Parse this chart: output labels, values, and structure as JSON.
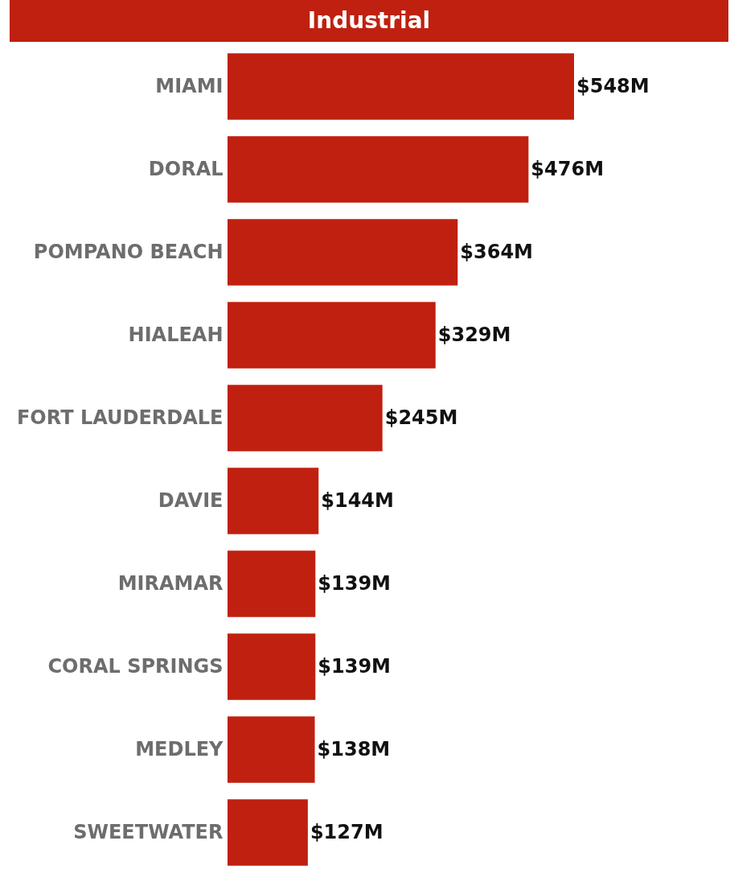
{
  "chart_data": {
    "type": "bar",
    "orientation": "horizontal",
    "title": "Industrial",
    "categories": [
      "MIAMI",
      "DORAL",
      "POMPANO BEACH",
      "HIALEAH",
      "FORT LAUDERDALE",
      "DAVIE",
      "MIRAMAR",
      "CORAL SPRINGS",
      "MEDLEY",
      "SWEETWATER"
    ],
    "values": [
      548,
      476,
      364,
      329,
      245,
      144,
      139,
      139,
      138,
      127
    ],
    "value_labels": [
      "$548M",
      "$476M",
      "$364M",
      "$329M",
      "$245M",
      "$144M",
      "$139M",
      "$139M",
      "$138M",
      "$127M"
    ],
    "color": "#c0200f"
  }
}
